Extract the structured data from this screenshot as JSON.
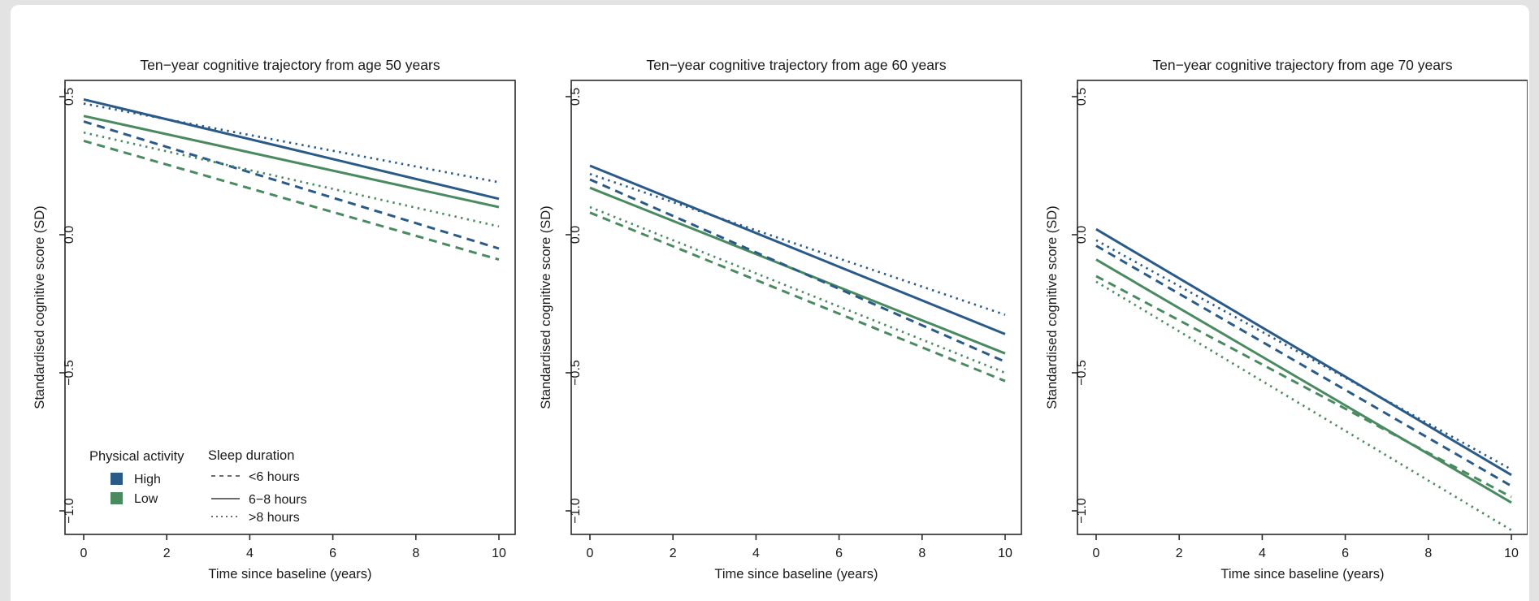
{
  "colors": {
    "high": "#2a5a88",
    "low": "#4a8a60",
    "axis_text": "#1a1a1a",
    "legend_line": "#3a3a3a",
    "box_stroke": "#2b2b2b",
    "page_edge": "#e3e3e3"
  },
  "legend": {
    "physical_activity": {
      "title": "Physical activity",
      "items": [
        {
          "label": "High",
          "color_key": "high"
        },
        {
          "label": "Low",
          "color_key": "low"
        }
      ]
    },
    "sleep_duration": {
      "title": "Sleep duration",
      "items": [
        {
          "label": "<6 hours",
          "style": "dashed"
        },
        {
          "label": "6−8 hours",
          "style": "solid"
        },
        {
          "label": ">8 hours",
          "style": "dotted"
        }
      ]
    }
  },
  "chart_data": [
    {
      "type": "line",
      "title": "Ten−year cognitive trajectory from age 50 years",
      "xlabel": "Time since baseline (years)",
      "ylabel": "Standardised cognitive score (SD)",
      "xlim": [
        0,
        10
      ],
      "ylim": [
        -1.08,
        0.56
      ],
      "xticks": [
        {
          "v": 0,
          "label": "0"
        },
        {
          "v": 2,
          "label": "2"
        },
        {
          "v": 4,
          "label": "4"
        },
        {
          "v": 6,
          "label": "6"
        },
        {
          "v": 8,
          "label": "8"
        },
        {
          "v": 10,
          "label": "10"
        }
      ],
      "yticks": [
        {
          "v": 0.5,
          "label": "0.5"
        },
        {
          "v": 0,
          "label": "0.0"
        },
        {
          "v": -0.5,
          "label": "−0.5"
        },
        {
          "v": -1,
          "label": "−1.0"
        }
      ],
      "grid": false,
      "show_legend": true,
      "series": [
        {
          "name": "High, 6−8 hours",
          "color_key": "high",
          "style": "solid",
          "x": [
            0,
            10
          ],
          "y": [
            0.49,
            0.13
          ]
        },
        {
          "name": "Low, 6−8 hours",
          "color_key": "low",
          "style": "solid",
          "x": [
            0,
            10
          ],
          "y": [
            0.43,
            0.1
          ]
        },
        {
          "name": "High, <6 hours",
          "color_key": "high",
          "style": "dashed",
          "x": [
            0,
            10
          ],
          "y": [
            0.41,
            -0.05
          ]
        },
        {
          "name": "Low, <6 hours",
          "color_key": "low",
          "style": "dashed",
          "x": [
            0,
            10
          ],
          "y": [
            0.34,
            -0.09
          ]
        },
        {
          "name": "High, >8 hours",
          "color_key": "high",
          "style": "dotted",
          "x": [
            0,
            10
          ],
          "y": [
            0.475,
            0.19
          ]
        },
        {
          "name": "Low, >8 hours",
          "color_key": "low",
          "style": "dotted",
          "x": [
            0,
            10
          ],
          "y": [
            0.37,
            0.03
          ]
        }
      ]
    },
    {
      "type": "line",
      "title": "Ten−year cognitive trajectory from age 60 years",
      "xlabel": "Time since baseline (years)",
      "ylabel": "Standardised cognitive score (SD)",
      "xlim": [
        0,
        10
      ],
      "ylim": [
        -1.08,
        0.56
      ],
      "xticks": [
        {
          "v": 0,
          "label": "0"
        },
        {
          "v": 2,
          "label": "2"
        },
        {
          "v": 4,
          "label": "4"
        },
        {
          "v": 6,
          "label": "6"
        },
        {
          "v": 8,
          "label": "8"
        },
        {
          "v": 10,
          "label": "10"
        }
      ],
      "yticks": [
        {
          "v": 0.5,
          "label": "0.5"
        },
        {
          "v": 0,
          "label": "0.0"
        },
        {
          "v": -0.5,
          "label": "−0.5"
        },
        {
          "v": -1,
          "label": "−1.0"
        }
      ],
      "grid": false,
      "show_legend": false,
      "series": [
        {
          "name": "High, 6−8 hours",
          "color_key": "high",
          "style": "solid",
          "x": [
            0,
            10
          ],
          "y": [
            0.25,
            -0.36
          ]
        },
        {
          "name": "Low, 6−8 hours",
          "color_key": "low",
          "style": "solid",
          "x": [
            0,
            10
          ],
          "y": [
            0.17,
            -0.43
          ]
        },
        {
          "name": "High, <6 hours",
          "color_key": "high",
          "style": "dashed",
          "x": [
            0,
            10
          ],
          "y": [
            0.2,
            -0.46
          ]
        },
        {
          "name": "Low, <6 hours",
          "color_key": "low",
          "style": "dashed",
          "x": [
            0,
            10
          ],
          "y": [
            0.08,
            -0.53
          ]
        },
        {
          "name": "High, >8 hours",
          "color_key": "high",
          "style": "dotted",
          "x": [
            0,
            10
          ],
          "y": [
            0.22,
            -0.29
          ]
        },
        {
          "name": "Low, >8 hours",
          "color_key": "low",
          "style": "dotted",
          "x": [
            0,
            10
          ],
          "y": [
            0.1,
            -0.5
          ]
        }
      ]
    },
    {
      "type": "line",
      "title": "Ten−year cognitive trajectory from age 70 years",
      "xlabel": "Time since baseline (years)",
      "ylabel": "Standardised cognitive score (SD)",
      "xlim": [
        0,
        10
      ],
      "ylim": [
        -1.08,
        0.56
      ],
      "xticks": [
        {
          "v": 0,
          "label": "0"
        },
        {
          "v": 2,
          "label": "2"
        },
        {
          "v": 4,
          "label": "4"
        },
        {
          "v": 6,
          "label": "6"
        },
        {
          "v": 8,
          "label": "8"
        },
        {
          "v": 10,
          "label": "10"
        }
      ],
      "yticks": [
        {
          "v": 0.5,
          "label": "0.5"
        },
        {
          "v": 0,
          "label": "0.0"
        },
        {
          "v": -0.5,
          "label": "−0.5"
        },
        {
          "v": -1,
          "label": "−1.0"
        }
      ],
      "grid": false,
      "show_legend": false,
      "series": [
        {
          "name": "High, 6−8 hours",
          "color_key": "high",
          "style": "solid",
          "x": [
            0,
            10
          ],
          "y": [
            0.02,
            -0.87
          ]
        },
        {
          "name": "Low, 6−8 hours",
          "color_key": "low",
          "style": "solid",
          "x": [
            0,
            10
          ],
          "y": [
            -0.09,
            -0.97
          ]
        },
        {
          "name": "High, <6 hours",
          "color_key": "high",
          "style": "dashed",
          "x": [
            0,
            10
          ],
          "y": [
            -0.04,
            -0.91
          ]
        },
        {
          "name": "Low, <6 hours",
          "color_key": "low",
          "style": "dashed",
          "x": [
            0,
            10
          ],
          "y": [
            -0.15,
            -0.95
          ]
        },
        {
          "name": "High, >8 hours",
          "color_key": "high",
          "style": "dotted",
          "x": [
            0,
            10
          ],
          "y": [
            -0.02,
            -0.85
          ]
        },
        {
          "name": "Low, >8 hours",
          "color_key": "low",
          "style": "dotted",
          "x": [
            0,
            10
          ],
          "y": [
            -0.17,
            -1.07
          ]
        }
      ]
    }
  ]
}
